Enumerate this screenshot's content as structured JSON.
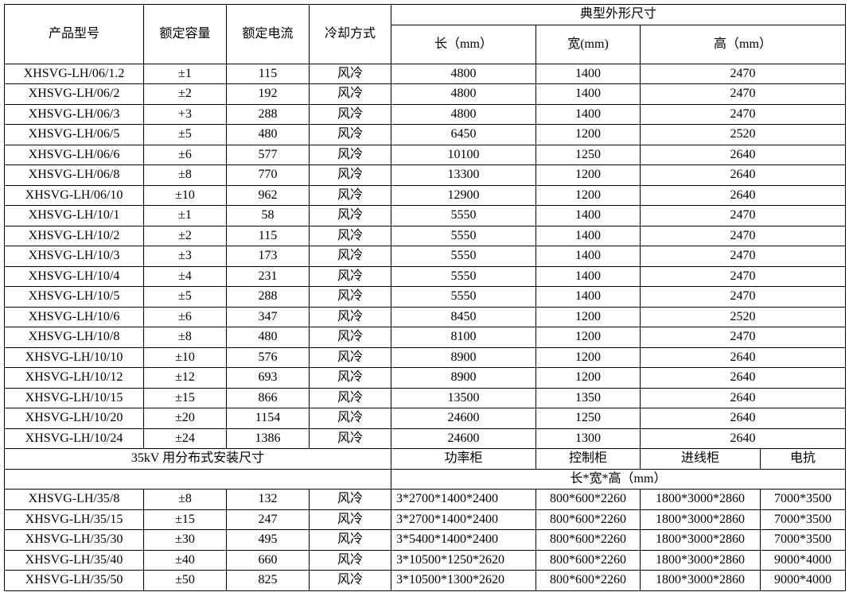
{
  "headers": {
    "model": "产品型号",
    "capacity": "额定容量",
    "current": "额定电流",
    "cooling": "冷却方式",
    "dimensions": "典型外形尺寸",
    "length": "长（mm）",
    "width": "宽(mm)",
    "height": "高（mm）"
  },
  "rows": [
    [
      "XHSVG-LH/06/1.2",
      "±1",
      "115",
      "风冷",
      "4800",
      "1400",
      "2470"
    ],
    [
      "XHSVG-LH/06/2",
      "±2",
      "192",
      "风冷",
      "4800",
      "1400",
      "2470"
    ],
    [
      "XHSVG-LH/06/3",
      "+3",
      "288",
      "风冷",
      "4800",
      "1400",
      "2470"
    ],
    [
      "XHSVG-LH/06/5",
      "±5",
      "480",
      "风冷",
      "6450",
      "1200",
      "2520"
    ],
    [
      "XHSVG-LH/06/6",
      "±6",
      "577",
      "风冷",
      "10100",
      "1250",
      "2640"
    ],
    [
      "XHSVG-LH/06/8",
      "±8",
      "770",
      "风冷",
      "13300",
      "1200",
      "2640"
    ],
    [
      "XHSVG-LH/06/10",
      "±10",
      "962",
      "风冷",
      "12900",
      "1200",
      "2640"
    ],
    [
      "XHSVG-LH/10/1",
      "±1",
      "58",
      "风冷",
      "5550",
      "1400",
      "2470"
    ],
    [
      "XHSVG-LH/10/2",
      "±2",
      "115",
      "风冷",
      "5550",
      "1400",
      "2470"
    ],
    [
      "XHSVG-LH/10/3",
      "±3",
      "173",
      "风冷",
      "5550",
      "1400",
      "2470"
    ],
    [
      "XHSVG-LH/10/4",
      "±4",
      "231",
      "风冷",
      "5550",
      "1400",
      "2470"
    ],
    [
      "XHSVG-LH/10/5",
      "±5",
      "288",
      "风冷",
      "5550",
      "1400",
      "2470"
    ],
    [
      "XHSVG-LH/10/6",
      "±6",
      "347",
      "风冷",
      "8450",
      "1200",
      "2520"
    ],
    [
      "XHSVG-LH/10/8",
      "±8",
      "480",
      "风冷",
      "8100",
      "1200",
      "2470"
    ],
    [
      "XHSVG-LH/10/10",
      "±10",
      "576",
      "风冷",
      "8900",
      "1200",
      "2640"
    ],
    [
      "XHSVG-LH/10/12",
      "±12",
      "693",
      "风冷",
      "8900",
      "1200",
      "2640"
    ],
    [
      "XHSVG-LH/10/15",
      "±15",
      "866",
      "风冷",
      "13500",
      "1350",
      "2640"
    ],
    [
      "XHSVG-LH/10/20",
      "±20",
      "1154",
      "风冷",
      "24600",
      "1250",
      "2640"
    ],
    [
      "XHSVG-LH/10/24",
      "±24",
      "1386",
      "风冷",
      "24600",
      "1300",
      "2640"
    ]
  ],
  "section35": {
    "title": "35kV 用分布式安装尺寸",
    "power_cabinet": "功率柜",
    "control_cabinet": "控制柜",
    "incoming_cabinet": "进线柜",
    "reactor": "电抗",
    "unit": "长*宽*高（mm）",
    "rows": [
      [
        "XHSVG-LH/35/8",
        "±8",
        "132",
        "风冷",
        "3*2700*1400*2400",
        "800*600*2260",
        "1800*3000*2860",
        "7000*3500"
      ],
      [
        "XHSVG-LH/35/15",
        "±15",
        "247",
        "风冷",
        "3*2700*1400*2400",
        "800*600*2260",
        "1800*3000*2860",
        "7000*3500"
      ],
      [
        "XHSVG-LH/35/30",
        "±30",
        "495",
        "风冷",
        "3*5400*1400*2400",
        "800*600*2260",
        "1800*3000*2860",
        "7000*3500"
      ],
      [
        "XHSVG-LH/35/40",
        "±40",
        "660",
        "风冷",
        "3*10500*1250*2620",
        "800*600*2260",
        "1800*3000*2860",
        "9000*4000"
      ],
      [
        "XHSVG-LH/35/50",
        "±50",
        "825",
        "风冷",
        "3*10500*1300*2620",
        "800*600*2260",
        "1800*3000*2860",
        "9000*4000"
      ]
    ]
  }
}
